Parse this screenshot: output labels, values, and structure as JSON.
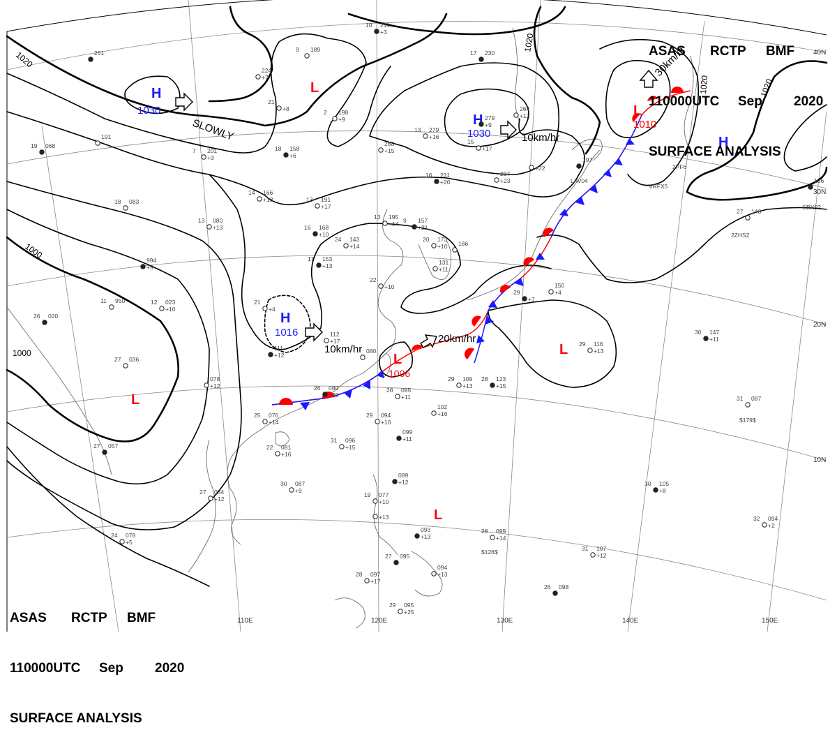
{
  "header": {
    "line1": [
      "ASAS",
      "RCTP",
      "BMF"
    ],
    "line2": [
      "110000UTC",
      "Sep",
      "2020"
    ],
    "line3": "SURFACE ANALYSIS"
  },
  "colors": {
    "high": "#1a1aff",
    "low": "#ff0000",
    "isobar": "#000000",
    "grid": "#888888",
    "coast": "#666666"
  },
  "graticule": {
    "lon_labels": [
      "110E",
      "120E",
      "130E",
      "140E",
      "150E"
    ],
    "lat_labels": [
      "40N",
      "30N",
      "20N",
      "10N"
    ]
  },
  "pressure_centers": [
    {
      "type": "H",
      "value": "1030",
      "label": "H"
    },
    {
      "type": "H",
      "value": "1030",
      "label": "H"
    },
    {
      "type": "H",
      "value": "1016",
      "label": "H"
    },
    {
      "type": "H",
      "value": "",
      "label": "H"
    },
    {
      "type": "L",
      "value": "",
      "label": "L"
    },
    {
      "type": "L",
      "value": "1010",
      "label": "L"
    },
    {
      "type": "L",
      "value": "1006",
      "label": "L"
    },
    {
      "type": "L",
      "value": "",
      "label": "L"
    },
    {
      "type": "L",
      "value": "",
      "label": "L"
    },
    {
      "type": "L",
      "value": "",
      "label": "L"
    }
  ],
  "isobar_labels": [
    "1020",
    "1000",
    "1000",
    "1020",
    "1020",
    "1020"
  ],
  "motion_labels": [
    "SLOWLY",
    "10km/hr",
    "30km/hr",
    "10km/hr",
    "20km/hr"
  ],
  "stations": [
    {
      "t": "10",
      "p": "211",
      "tend": "+3"
    },
    {
      "t": "9",
      "p": "189",
      "tend": ""
    },
    {
      "t": "",
      "p": "224",
      "tend": "+7"
    },
    {
      "t": "",
      "p": "261",
      "tend": ""
    },
    {
      "t": "21",
      "p": "",
      "tend": "+8"
    },
    {
      "t": "2",
      "p": "198",
      "tend": "+9"
    },
    {
      "t": "17",
      "p": "230",
      "tend": ""
    },
    {
      "t": "",
      "p": "264",
      "tend": "+12"
    },
    {
      "t": "13",
      "p": "279",
      "tend": "+16"
    },
    {
      "t": "",
      "p": "279",
      "tend": "+9"
    },
    {
      "t": "15",
      "p": "",
      "tend": "+17"
    },
    {
      "t": "",
      "p": "268",
      "tend": "+15"
    },
    {
      "t": "18",
      "p": "158",
      "tend": "+6"
    },
    {
      "t": "7",
      "p": "201",
      "tend": "+3"
    },
    {
      "t": "",
      "p": "191",
      "tend": ""
    },
    {
      "t": "19",
      "p": "068",
      "tend": ""
    },
    {
      "t": "14",
      "p": "166",
      "tend": "+13"
    },
    {
      "t": "13",
      "p": "191",
      "tend": "+17"
    },
    {
      "t": "16",
      "p": "231",
      "tend": "+20"
    },
    {
      "t": "",
      "p": "237",
      "tend": "+23"
    },
    {
      "t": "",
      "p": "",
      "tend": "+22"
    },
    {
      "t": "",
      "p": "197",
      "tend": ""
    },
    {
      "t": "18",
      "p": "083",
      "tend": ""
    },
    {
      "t": "13",
      "p": "080",
      "tend": "+13"
    },
    {
      "t": "16",
      "p": "168",
      "tend": "+10"
    },
    {
      "t": "24",
      "p": "143",
      "tend": "+14"
    },
    {
      "t": "13",
      "p": "195",
      "tend": "+14"
    },
    {
      "t": "9",
      "p": "157",
      "tend": "+21"
    },
    {
      "t": "20",
      "p": "173",
      "tend": "+10"
    },
    {
      "t": "",
      "p": "166",
      "tend": ""
    },
    {
      "t": "17",
      "p": "153",
      "tend": "+13"
    },
    {
      "t": "",
      "p": "131",
      "tend": "+11"
    },
    {
      "t": "22",
      "p": "",
      "tend": "+10"
    },
    {
      "t": "",
      "p": "994",
      "tend": "+5"
    },
    {
      "t": "11",
      "p": "950",
      "tend": ""
    },
    {
      "t": "12",
      "p": "023",
      "tend": "+10"
    },
    {
      "t": "26",
      "p": "020",
      "tend": ""
    },
    {
      "t": "21",
      "p": "",
      "tend": "+4"
    },
    {
      "t": "",
      "p": "112",
      "tend": "+17"
    },
    {
      "t": "",
      "p": "111",
      "tend": "+12"
    },
    {
      "t": "",
      "p": "080",
      "tend": ""
    },
    {
      "t": "",
      "p": "150",
      "tend": "+4"
    },
    {
      "t": "29",
      "p": "",
      "tend": "+7"
    },
    {
      "t": "27",
      "p": "036",
      "tend": ""
    },
    {
      "t": "",
      "p": "078",
      "tend": "+12"
    },
    {
      "t": "26",
      "p": "080",
      "tend": "+20"
    },
    {
      "t": "28",
      "p": "095",
      "tend": "+11"
    },
    {
      "t": "29",
      "p": "109",
      "tend": "+13"
    },
    {
      "t": "28",
      "p": "123",
      "tend": "+15"
    },
    {
      "t": "",
      "p": "102",
      "tend": "+16"
    },
    {
      "t": "29",
      "p": "116",
      "tend": "+13"
    },
    {
      "t": "30",
      "p": "147",
      "tend": "+11"
    },
    {
      "t": "25",
      "p": "076",
      "tend": "+14"
    },
    {
      "t": "29",
      "p": "094",
      "tend": "+10"
    },
    {
      "t": "",
      "p": "099",
      "tend": "+11"
    },
    {
      "t": "22",
      "p": "081",
      "tend": "+16"
    },
    {
      "t": "31",
      "p": "096",
      "tend": "+15"
    },
    {
      "t": "27",
      "p": "057",
      "tend": ""
    },
    {
      "t": "31",
      "p": "087",
      "tend": ""
    },
    {
      "t": "27",
      "p": "146",
      "tend": ""
    },
    {
      "t": "",
      "p": "156",
      "tend": ""
    },
    {
      "t": "27",
      "p": "084",
      "tend": "+12"
    },
    {
      "t": "30",
      "p": "087",
      "tend": "+9"
    },
    {
      "t": "",
      "p": "089",
      "tend": "+12"
    },
    {
      "t": "19",
      "p": "077",
      "tend": "+10"
    },
    {
      "t": "",
      "p": "",
      "tend": "+13"
    },
    {
      "t": "30",
      "p": "105",
      "tend": "+8"
    },
    {
      "t": "32",
      "p": "094",
      "tend": "+2"
    },
    {
      "t": "24",
      "p": "078",
      "tend": "+5"
    },
    {
      "t": "",
      "p": "093",
      "tend": "+13"
    },
    {
      "t": "28",
      "p": "099",
      "tend": "+14"
    },
    {
      "t": "31",
      "p": "107",
      "tend": "+12"
    },
    {
      "t": "27",
      "p": "095",
      "tend": ""
    },
    {
      "t": "28",
      "p": "097",
      "tend": "+17"
    },
    {
      "t": "",
      "p": "094",
      "tend": "+13"
    },
    {
      "t": "26",
      "p": "098",
      "tend": ""
    },
    {
      "t": "29",
      "p": "095",
      "tend": "+25"
    }
  ],
  "ship_ids": [
    "LAV04",
    "VRFX5",
    "2PF6",
    "CBX92",
    "2ZHS2",
    "$179$",
    "$126$"
  ]
}
